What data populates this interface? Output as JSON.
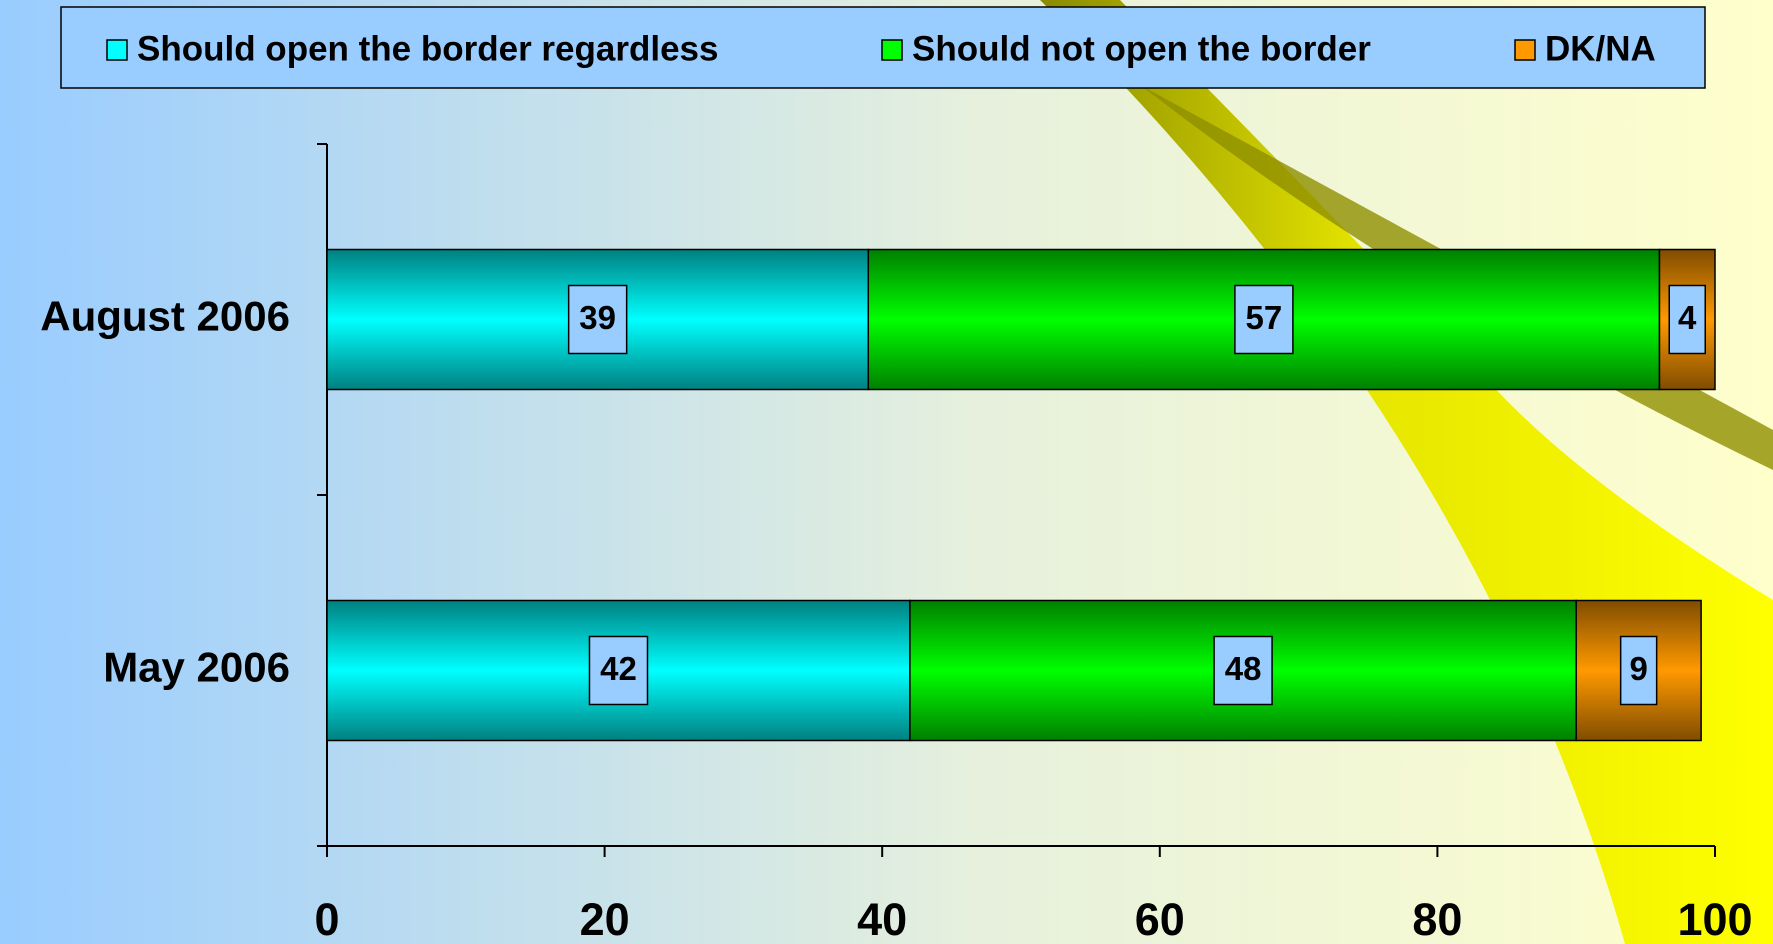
{
  "chart_data": {
    "type": "stacked-bar-horizontal",
    "categories": [
      "August 2006",
      "May 2006"
    ],
    "series": [
      {
        "name": "Should open the border regardless",
        "color": "#00ffff",
        "values": [
          39,
          42
        ]
      },
      {
        "name": "Should not open the border",
        "color": "#00ff00",
        "values": [
          57,
          48
        ]
      },
      {
        "name": "DK/NA",
        "color": "#ff9900",
        "values": [
          4,
          9
        ]
      }
    ],
    "xlim": [
      0,
      100
    ],
    "xticks": [
      0,
      20,
      40,
      60,
      80,
      100
    ],
    "legend": "top"
  }
}
